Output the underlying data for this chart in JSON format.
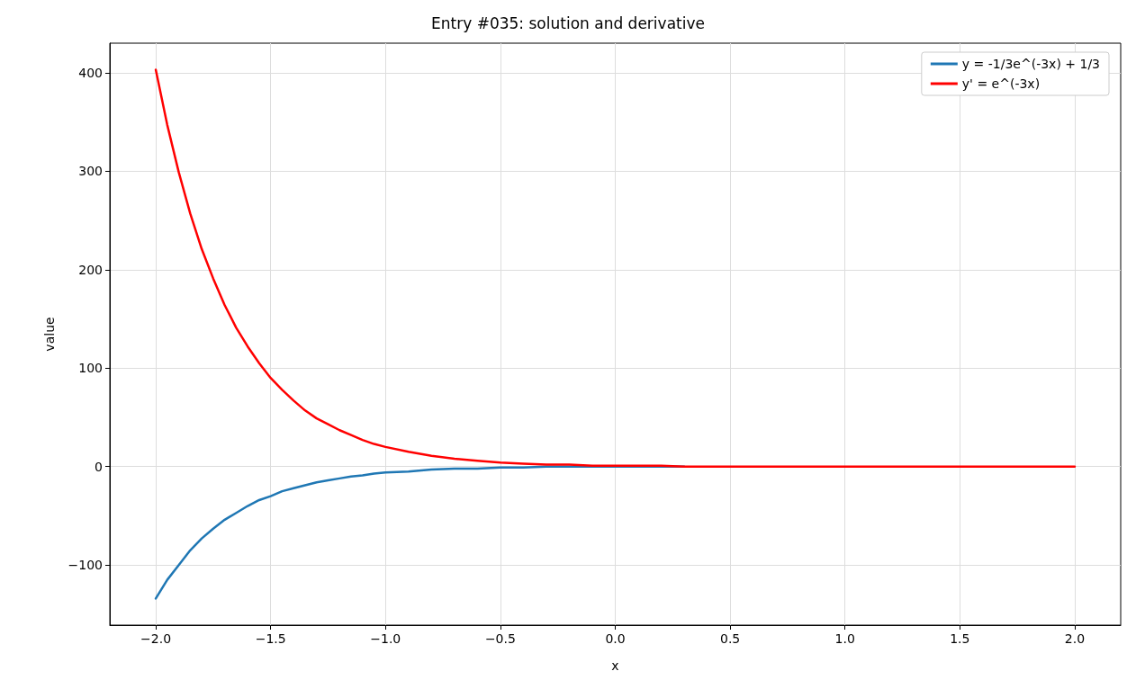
{
  "chart_data": {
    "type": "line",
    "title": "Entry #035: solution and derivative",
    "xlabel": "x",
    "ylabel": "value",
    "x": [
      -2.0,
      -1.95,
      -1.9,
      -1.85,
      -1.8,
      -1.75,
      -1.7,
      -1.65,
      -1.6,
      -1.55,
      -1.5,
      -1.45,
      -1.4,
      -1.35,
      -1.3,
      -1.25,
      -1.2,
      -1.15,
      -1.1,
      -1.05,
      -1.0,
      -0.9,
      -0.8,
      -0.7,
      -0.6,
      -0.5,
      -0.4,
      -0.3,
      -0.2,
      -0.1,
      0.0,
      0.1,
      0.2,
      0.3,
      0.4,
      0.5,
      0.6,
      0.7,
      0.8,
      0.9,
      1.0,
      1.1,
      1.2,
      1.3,
      1.4,
      1.5,
      1.6,
      1.7,
      1.8,
      1.9,
      2.0
    ],
    "series": [
      {
        "name": "y = -1/3e^(-3x) + 1/3",
        "color": "#1f77b4",
        "values": [
          -134,
          -115,
          -100,
          -85,
          -73,
          -63,
          -54,
          -47,
          -40,
          -34,
          -30,
          -25,
          -22,
          -19,
          -16,
          -14,
          -12,
          -10,
          -9,
          -7,
          -6,
          -5,
          -3,
          -2,
          -2,
          -1,
          -1,
          0,
          0,
          0,
          0,
          0,
          0,
          0,
          null,
          null,
          null,
          null,
          null,
          null,
          null,
          null,
          null,
          null,
          null,
          null,
          null,
          null,
          null,
          null,
          null
        ]
      },
      {
        "name": "y' = e^(-3x)",
        "color": "#ff0000",
        "values": [
          403,
          347,
          299,
          257,
          221,
          191,
          164,
          141,
          122,
          105,
          90,
          78,
          67,
          57,
          49,
          43,
          37,
          32,
          27,
          23,
          20,
          15,
          11,
          8,
          6,
          4,
          3,
          2,
          2,
          1,
          1,
          1,
          1,
          0,
          0,
          0,
          0,
          0,
          0,
          0,
          0,
          0,
          0,
          0,
          0,
          0,
          0,
          0,
          0,
          0,
          0
        ]
      }
    ],
    "xlim": [
      -2.2,
      2.2
    ],
    "xticks": [
      {
        "value": -2.0,
        "label": "−2.0"
      },
      {
        "value": -1.5,
        "label": "−1.5"
      },
      {
        "value": -1.0,
        "label": "−1.0"
      },
      {
        "value": -0.5,
        "label": "−0.5"
      },
      {
        "value": 0,
        "label": "0.0"
      },
      {
        "value": 0.5,
        "label": "0.5"
      },
      {
        "value": 1.0,
        "label": "1.0"
      },
      {
        "value": 1.5,
        "label": "1.5"
      },
      {
        "value": 2.0,
        "label": "2.0"
      }
    ],
    "ylim": [
      -161,
      430
    ],
    "yticks": [
      {
        "value": -100,
        "label": "−100"
      },
      0,
      100,
      200,
      300,
      400
    ],
    "grid": true,
    "legend": "top right",
    "marker": "none",
    "line_style": "solid"
  }
}
